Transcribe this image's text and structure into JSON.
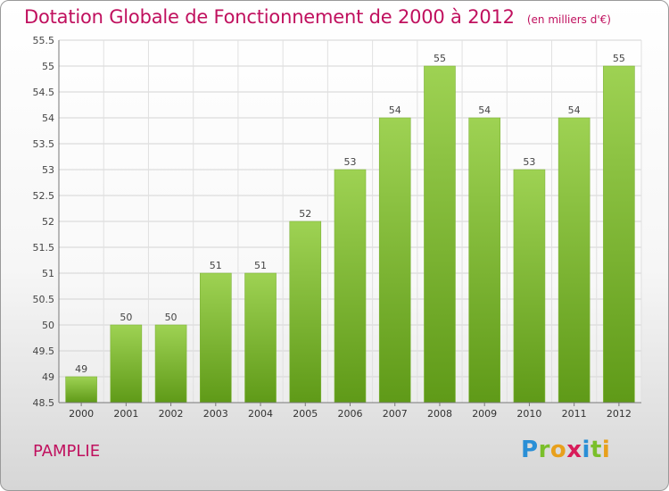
{
  "header": {
    "title": "Dotation Globale de Fonctionnement de 2000 à 2012",
    "unit": "(en milliers d'€)"
  },
  "footer": {
    "commune": "PAMPLIE",
    "logo": [
      "P",
      "r",
      "o",
      "x",
      "i",
      "t",
      "i"
    ]
  },
  "colors": {
    "accent": "#c0105e",
    "bar_top": "#9ed253",
    "bar_bottom": "#5f9a18"
  },
  "chart_data": {
    "type": "bar",
    "categories": [
      "2000",
      "2001",
      "2002",
      "2003",
      "2004",
      "2005",
      "2006",
      "2007",
      "2008",
      "2009",
      "2010",
      "2011",
      "2012"
    ],
    "values": [
      49,
      50,
      50,
      51,
      51,
      52,
      53,
      54,
      55,
      54,
      53,
      54,
      55
    ],
    "data_labels": [
      "49",
      "50",
      "50",
      "51",
      "51",
      "52",
      "53",
      "54",
      "55",
      "54",
      "53",
      "54",
      "55"
    ],
    "ylim": [
      48.5,
      55.5
    ],
    "yticks": [
      48.5,
      49,
      49.5,
      50,
      50.5,
      51,
      51.5,
      52,
      52.5,
      53,
      53.5,
      54,
      54.5,
      55,
      55.5
    ],
    "ytick_labels": [
      "48.5",
      "49",
      "49.5",
      "50",
      "50.5",
      "51",
      "51.5",
      "52",
      "52.5",
      "53",
      "53.5",
      "54",
      "54.5",
      "55",
      "55.5"
    ],
    "grid": true
  }
}
